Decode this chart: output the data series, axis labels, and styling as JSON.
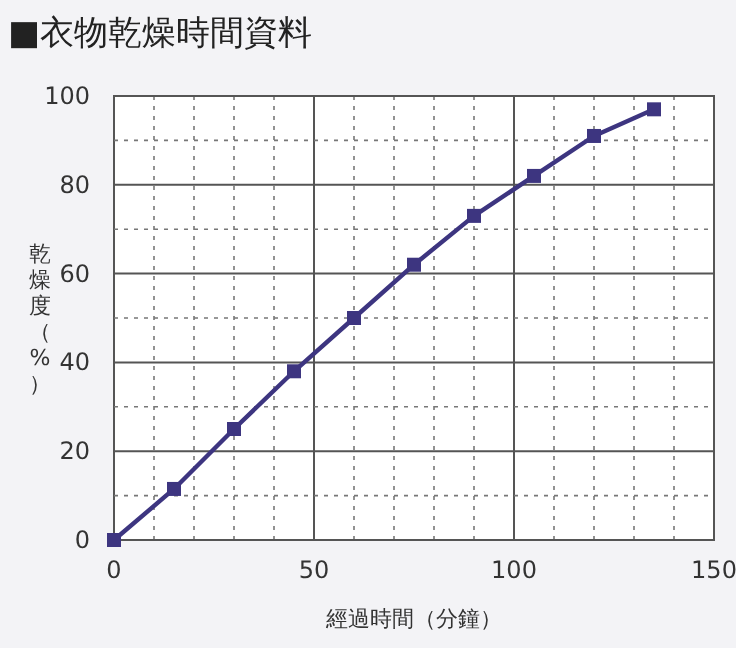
{
  "chart_data": {
    "type": "line",
    "title": "■衣物乾燥時間資料",
    "xlabel": "經過時間（分鐘）",
    "ylabel": "乾燥度（%）",
    "x": [
      0,
      15,
      30,
      45,
      60,
      75,
      90,
      105,
      120,
      135
    ],
    "series": [
      {
        "color": "#3d3580",
        "values": [
          0,
          11.5,
          25,
          38,
          50,
          62,
          73,
          82,
          91,
          97
        ]
      }
    ],
    "xlim": [
      0,
      150
    ],
    "ylim": [
      0,
      100
    ],
    "xticks": [
      0,
      {
        "value": 10,
        "label": null
      },
      {
        "value": 20,
        "label": null
      },
      {
        "value": 30,
        "label": null
      },
      {
        "value": 40,
        "label": null
      },
      50,
      {
        "value": 60,
        "label": null
      },
      {
        "value": 70,
        "label": null
      },
      {
        "value": 80,
        "label": null
      },
      {
        "value": 90,
        "label": null
      },
      100,
      {
        "value": 110,
        "label": null
      },
      {
        "value": 120,
        "label": null
      },
      {
        "value": 130,
        "label": null
      },
      {
        "value": 140,
        "label": null
      },
      150
    ],
    "yticks": [
      0,
      {
        "value": 10,
        "label": null
      },
      20,
      {
        "value": 30,
        "label": null
      },
      40,
      {
        "value": 50,
        "label": null
      },
      60,
      {
        "value": 70,
        "label": null
      },
      80,
      {
        "value": 90,
        "label": null
      },
      100
    ],
    "grid": true,
    "marker": "square",
    "line_style": "solid"
  }
}
